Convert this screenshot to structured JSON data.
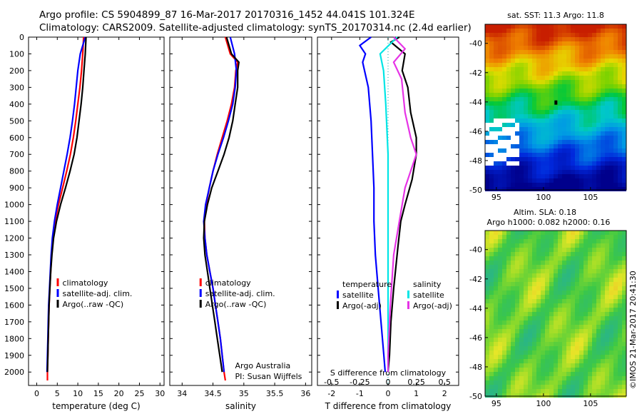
{
  "header": {
    "line1": "Argo profile: CS 5904899_87 16-Mar-2017 20170316_1452 44.041S 101.324E",
    "line2": "Climatology: CARS2009. Satellite-adjusted climatology: synTS_20170314.nc (2.4d earlier)"
  },
  "colors": {
    "climatology": "#ff0000",
    "satellite": "#0000ff",
    "argo": "#000000",
    "cyan": "#00e5e5",
    "magenta": "#e633e6"
  },
  "chart_data": [
    {
      "type": "line",
      "id": "temperature",
      "xlabel": "temperature (deg C)",
      "xlim": [
        -2,
        31
      ],
      "xticks": [
        0,
        5,
        10,
        15,
        20,
        25,
        30
      ],
      "ylim": [
        0,
        2080
      ],
      "yticks": [
        0,
        100,
        200,
        300,
        400,
        500,
        600,
        700,
        800,
        900,
        1000,
        1100,
        1200,
        1300,
        1400,
        1500,
        1600,
        1700,
        1800,
        1900,
        2000
      ],
      "legend": [
        "climatology",
        "satellite-adj. clim.",
        "Argo(..raw -QC)"
      ],
      "series": [
        {
          "name": "climatology",
          "color": "#ff0000",
          "points": [
            [
              11.4,
              0
            ],
            [
              11.2,
              100
            ],
            [
              10.9,
              200
            ],
            [
              10.5,
              300
            ],
            [
              10.0,
              400
            ],
            [
              9.5,
              500
            ],
            [
              8.9,
              600
            ],
            [
              8.2,
              700
            ],
            [
              7.3,
              800
            ],
            [
              6.3,
              900
            ],
            [
              5.3,
              1000
            ],
            [
              4.5,
              1100
            ],
            [
              3.9,
              1200
            ],
            [
              3.6,
              1300
            ],
            [
              3.4,
              1400
            ],
            [
              3.2,
              1500
            ],
            [
              3.0,
              1600
            ],
            [
              2.9,
              1700
            ],
            [
              2.8,
              1800
            ],
            [
              2.7,
              1900
            ],
            [
              2.6,
              2000
            ],
            [
              2.6,
              2050
            ]
          ]
        },
        {
          "name": "satellite-adj. clim.",
          "color": "#0000ff",
          "points": [
            [
              11.8,
              0
            ],
            [
              10.6,
              100
            ],
            [
              10.0,
              200
            ],
            [
              9.6,
              300
            ],
            [
              9.2,
              400
            ],
            [
              8.7,
              500
            ],
            [
              8.1,
              600
            ],
            [
              7.4,
              700
            ],
            [
              6.6,
              800
            ],
            [
              5.8,
              900
            ],
            [
              5.0,
              1000
            ],
            [
              4.3,
              1100
            ],
            [
              3.8,
              1200
            ],
            [
              3.5,
              1300
            ],
            [
              3.3,
              1400
            ],
            [
              3.1,
              1500
            ],
            [
              2.9,
              1600
            ],
            [
              2.8,
              1700
            ],
            [
              2.7,
              1800
            ],
            [
              2.6,
              1900
            ],
            [
              2.5,
              2000
            ]
          ]
        },
        {
          "name": "Argo(..raw -QC)",
          "color": "#000000",
          "points": [
            [
              12.0,
              0
            ],
            [
              11.8,
              100
            ],
            [
              11.5,
              200
            ],
            [
              11.2,
              300
            ],
            [
              10.8,
              400
            ],
            [
              10.3,
              500
            ],
            [
              9.8,
              600
            ],
            [
              9.1,
              700
            ],
            [
              8.1,
              800
            ],
            [
              7.0,
              900
            ],
            [
              5.8,
              1000
            ],
            [
              4.8,
              1100
            ],
            [
              4.1,
              1200
            ],
            [
              3.7,
              1300
            ],
            [
              3.4,
              1400
            ],
            [
              3.2,
              1500
            ],
            [
              3.0,
              1600
            ],
            [
              2.9,
              1700
            ],
            [
              2.8,
              1800
            ],
            [
              2.7,
              1900
            ],
            [
              2.6,
              2000
            ]
          ]
        }
      ]
    },
    {
      "type": "line",
      "id": "salinity",
      "xlabel": "salinity",
      "xlim": [
        33.8,
        36.1
      ],
      "xticks": [
        34,
        34.5,
        35,
        35.5,
        36
      ],
      "ylim": [
        0,
        2080
      ],
      "legend": [
        "climatology",
        "satellite-adj. clim.",
        "Argo(..raw -QC)"
      ],
      "annotation": [
        "Argo Australia",
        "PI: Susan Wijffels"
      ],
      "series": [
        {
          "name": "climatology",
          "color": "#ff0000",
          "points": [
            [
              34.7,
              0
            ],
            [
              34.78,
              100
            ],
            [
              34.9,
              150
            ],
            [
              34.87,
              200
            ],
            [
              34.85,
              300
            ],
            [
              34.8,
              400
            ],
            [
              34.73,
              500
            ],
            [
              34.65,
              600
            ],
            [
              34.57,
              700
            ],
            [
              34.5,
              800
            ],
            [
              34.44,
              900
            ],
            [
              34.39,
              1000
            ],
            [
              34.36,
              1100
            ],
            [
              34.37,
              1200
            ],
            [
              34.4,
              1300
            ],
            [
              34.45,
              1400
            ],
            [
              34.5,
              1500
            ],
            [
              34.54,
              1600
            ],
            [
              34.58,
              1700
            ],
            [
              34.62,
              1800
            ],
            [
              34.65,
              1900
            ],
            [
              34.68,
              2000
            ],
            [
              34.7,
              2050
            ]
          ]
        },
        {
          "name": "satellite-adj. clim.",
          "color": "#0000ff",
          "points": [
            [
              34.78,
              0
            ],
            [
              34.85,
              100
            ],
            [
              34.88,
              200
            ],
            [
              34.86,
              300
            ],
            [
              34.82,
              400
            ],
            [
              34.75,
              500
            ],
            [
              34.67,
              600
            ],
            [
              34.58,
              700
            ],
            [
              34.5,
              800
            ],
            [
              34.44,
              900
            ],
            [
              34.38,
              1000
            ],
            [
              34.35,
              1100
            ],
            [
              34.37,
              1200
            ],
            [
              34.4,
              1300
            ],
            [
              34.45,
              1400
            ],
            [
              34.5,
              1500
            ],
            [
              34.54,
              1600
            ],
            [
              34.58,
              1700
            ],
            [
              34.62,
              1800
            ],
            [
              34.65,
              1900
            ],
            [
              34.68,
              2000
            ]
          ]
        },
        {
          "name": "Argo(..raw -QC)",
          "color": "#000000",
          "points": [
            [
              34.72,
              0
            ],
            [
              34.8,
              100
            ],
            [
              34.92,
              150
            ],
            [
              34.9,
              200
            ],
            [
              34.9,
              300
            ],
            [
              34.86,
              400
            ],
            [
              34.82,
              500
            ],
            [
              34.76,
              600
            ],
            [
              34.68,
              700
            ],
            [
              34.58,
              800
            ],
            [
              34.48,
              900
            ],
            [
              34.41,
              1000
            ],
            [
              34.36,
              1100
            ],
            [
              34.35,
              1200
            ],
            [
              34.37,
              1300
            ],
            [
              34.41,
              1400
            ],
            [
              34.45,
              1500
            ],
            [
              34.49,
              1600
            ],
            [
              34.53,
              1700
            ],
            [
              34.57,
              1800
            ],
            [
              34.61,
              1900
            ],
            [
              34.65,
              2000
            ]
          ]
        }
      ]
    },
    {
      "type": "line",
      "id": "difference",
      "xlabel": "T difference from climatology",
      "xlabel_top": "S difference from climatology",
      "xlim": [
        -2.5,
        2.5
      ],
      "xticks": [
        -2,
        -1,
        0,
        1,
        2
      ],
      "xticks_top": [
        "-0.5",
        "-0.25",
        "0",
        "0.25",
        "0.5"
      ],
      "xticks_top_values": [
        -0.5,
        -0.25,
        0,
        0.25,
        0.5
      ],
      "ylim": [
        0,
        2080
      ],
      "legend_left_title": "temperature",
      "legend_right_title": "salinity",
      "legend": [
        "satellite",
        "Argo(-adj)",
        "satellite",
        "Argo(-adj)"
      ],
      "series": [
        {
          "name": "temperature satellite",
          "color": "#0000ff",
          "points": [
            [
              -0.6,
              0
            ],
            [
              -1.0,
              50
            ],
            [
              -0.8,
              100
            ],
            [
              -0.9,
              150
            ],
            [
              -0.7,
              300
            ],
            [
              -0.6,
              500
            ],
            [
              -0.55,
              700
            ],
            [
              -0.5,
              900
            ],
            [
              -0.5,
              1100
            ],
            [
              -0.45,
              1300
            ],
            [
              -0.35,
              1500
            ],
            [
              -0.25,
              1700
            ],
            [
              -0.15,
              1900
            ],
            [
              -0.1,
              2000
            ]
          ]
        },
        {
          "name": "temperature Argo(-adj)",
          "color": "#000000",
          "points": [
            [
              0.4,
              0
            ],
            [
              0.1,
              30
            ],
            [
              0.6,
              100
            ],
            [
              0.5,
              200
            ],
            [
              0.7,
              300
            ],
            [
              0.8,
              450
            ],
            [
              1.0,
              600
            ],
            [
              1.0,
              700
            ],
            [
              0.85,
              850
            ],
            [
              0.6,
              1000
            ],
            [
              0.45,
              1100
            ],
            [
              0.35,
              1250
            ],
            [
              0.2,
              1500
            ],
            [
              0.1,
              1700
            ],
            [
              0.05,
              1900
            ],
            [
              0.0,
              2000
            ]
          ]
        },
        {
          "name": "salinity satellite",
          "color": "#00e5e5",
          "points": [
            [
              0.08,
              0
            ],
            [
              -0.07,
              100
            ],
            [
              -0.04,
              200
            ],
            [
              -0.02,
              400
            ],
            [
              0.0,
              700
            ],
            [
              0.0,
              1000
            ],
            [
              0.0,
              1300
            ],
            [
              0.0,
              1600
            ],
            [
              0.0,
              1900
            ],
            [
              0.0,
              2000
            ]
          ]
        },
        {
          "name": "salinity Argo(-adj)",
          "color": "#e633e6",
          "points": [
            [
              0.05,
              0
            ],
            [
              0.15,
              70
            ],
            [
              0.05,
              150
            ],
            [
              0.12,
              250
            ],
            [
              0.15,
              450
            ],
            [
              0.2,
              600
            ],
            [
              0.25,
              700
            ],
            [
              0.2,
              800
            ],
            [
              0.15,
              900
            ],
            [
              0.1,
              1100
            ],
            [
              0.05,
              1300
            ],
            [
              0.02,
              1600
            ],
            [
              0.0,
              1900
            ],
            [
              0.0,
              2000
            ]
          ]
        }
      ]
    },
    {
      "type": "heatmap",
      "id": "sst_map",
      "title": "sat. SST: 11.3 Argo: 11.8",
      "xlim": [
        93.8,
        108.8
      ],
      "ylim": [
        -50,
        -38.7
      ],
      "xticks": [
        95,
        100,
        105
      ],
      "yticks": [
        -40,
        -42,
        -44,
        -46,
        -48,
        -50
      ],
      "marker": {
        "lon": 101.324,
        "lat": -44.041
      }
    },
    {
      "type": "heatmap",
      "id": "sla_map",
      "title": "Altim. SLA: 0.18",
      "subtitle": "Argo h1000: 0.082 h2000: 0.16",
      "xlim": [
        93.8,
        108.8
      ],
      "ylim": [
        -50,
        -38.7
      ],
      "xticks": [
        95,
        100,
        105
      ],
      "yticks": [
        -40,
        -42,
        -44,
        -46,
        -48,
        -50
      ]
    }
  ],
  "credit": "©IMOS 21-Mar-2017 20:41:30"
}
